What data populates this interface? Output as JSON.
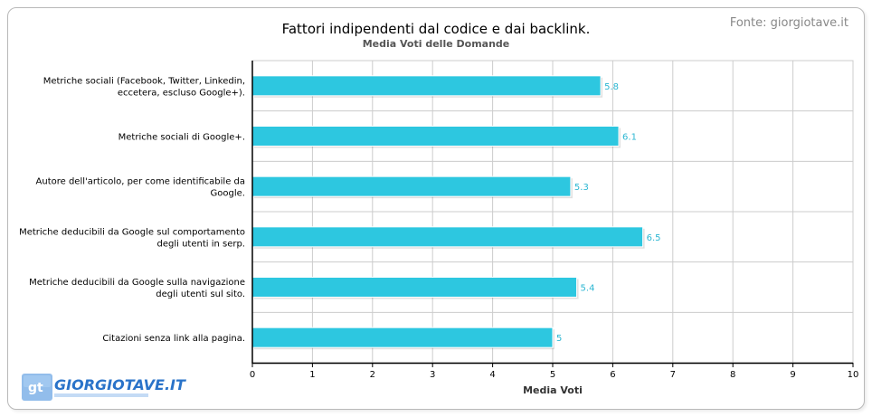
{
  "colors": {
    "bar": "#2dc7e0",
    "value_label": "#2bb6d2",
    "grid": "#cccccc",
    "frame": "#b9b9b9",
    "source": "#888888",
    "logo": "#2a73c9"
  },
  "logo": {
    "badge": "gt",
    "text": "GIORGIOTAVE.IT"
  },
  "chart_data": {
    "type": "bar",
    "orientation": "horizontal",
    "title": "Fattori indipendenti dal codice e dai backlink.",
    "subtitle": "Media Voti delle Domande",
    "source": "Fonte: giorgiotave.it",
    "xlabel": "Media Voti",
    "ylabel": "",
    "xlim": [
      0,
      10
    ],
    "xticks": [
      "0",
      "1",
      "2",
      "3",
      "4",
      "5",
      "6",
      "7",
      "8",
      "9",
      "10"
    ],
    "grid": true,
    "legend": "none",
    "categories": [
      [
        "Metriche sociali (Facebook, Twitter, Linkedin,",
        "eccetera, escluso Google+)."
      ],
      [
        "Metriche sociali di Google+."
      ],
      [
        "Autore dell'articolo, per come identificabile da",
        "Google."
      ],
      [
        "Metriche deducibili da Google sul comportamento",
        "degli utenti in serp."
      ],
      [
        "Metriche deducibili da Google sulla navigazione",
        "degli utenti sul sito."
      ],
      [
        "Citazioni senza link alla pagina."
      ]
    ],
    "values": [
      5.8,
      6.1,
      5.3,
      6.5,
      5.4,
      5
    ],
    "value_labels": [
      "5.8",
      "6.1",
      "5.3",
      "6.5",
      "5.4",
      "5"
    ]
  }
}
